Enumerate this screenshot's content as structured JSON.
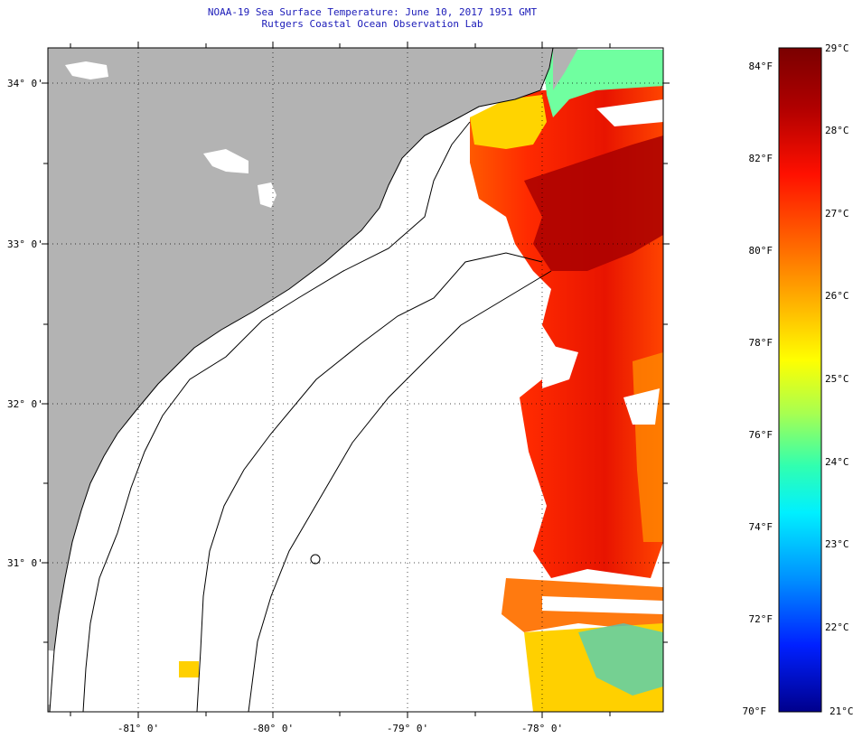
{
  "header": {
    "title": "NOAA-19 Sea Surface Temperature:  June 10, 2017 1951 GMT",
    "subtitle": "Rutgers Coastal Ocean Observation Lab"
  },
  "map": {
    "lon_labels": [
      "-81° 0'",
      "-80° 0'",
      "-79° 0'",
      "-78° 0'"
    ],
    "lat_labels": [
      "34° 0'",
      "33° 0'",
      "32° 0'",
      "31° 0'"
    ],
    "land_color": "#b3b3b3",
    "cloud_color": "#ffffff",
    "coastline_color": "#000000"
  },
  "colorbar": {
    "fahrenheit_labels": [
      "84°F",
      "82°F",
      "80°F",
      "78°F",
      "76°F",
      "74°F",
      "72°F",
      "70°F"
    ],
    "celsius_labels": [
      "29°C",
      "28°C",
      "27°C",
      "26°C",
      "25°C",
      "24°C",
      "23°C",
      "22°C",
      "21°C"
    ],
    "colors_top_to_bottom": [
      "#7a0000",
      "#c00000",
      "#ff2000",
      "#ff7000",
      "#ffc000",
      "#ffff00",
      "#a0ff40",
      "#00ffe0",
      "#00a0ff",
      "#0030ff",
      "#00008c"
    ]
  }
}
